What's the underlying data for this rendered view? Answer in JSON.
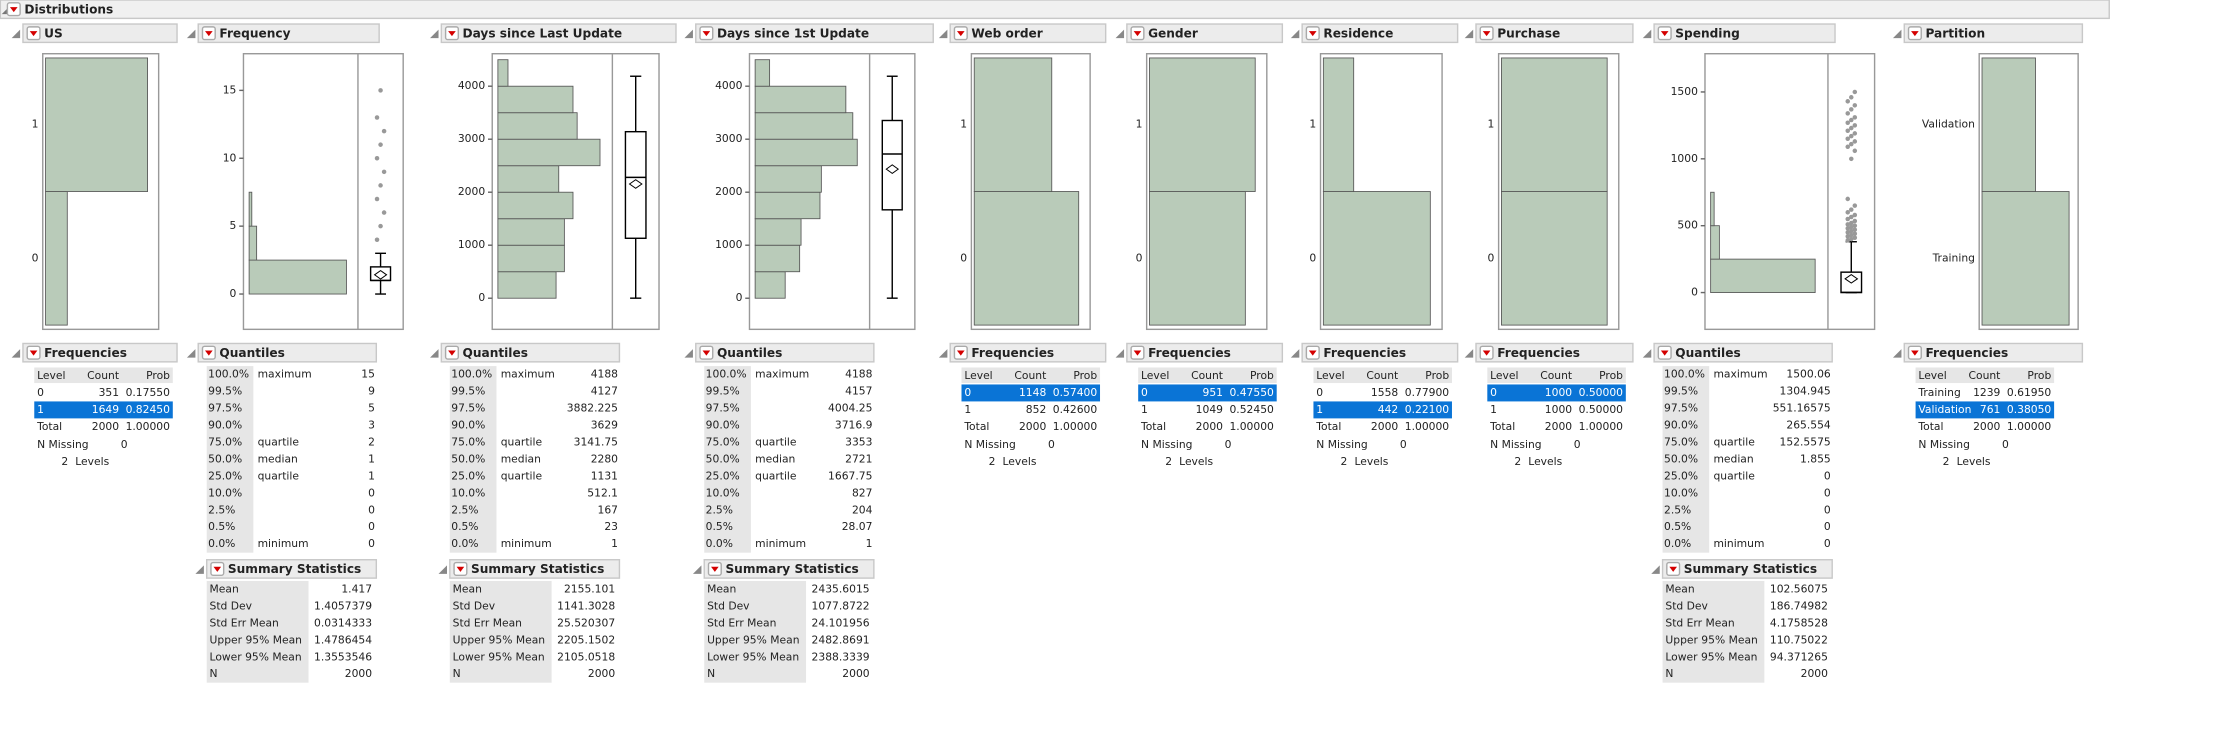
{
  "title": "Distributions",
  "panels": [
    {
      "name": "US",
      "type": "categorical",
      "frequencies": {
        "title": "Frequencies",
        "columns": [
          "Level",
          "Count",
          "Prob"
        ],
        "rows": [
          [
            "0",
            351,
            "0.17550"
          ],
          [
            "1",
            1649,
            "0.82450"
          ]
        ],
        "total": [
          "Total",
          2000,
          "1.00000"
        ],
        "selected": 1,
        "missing_label": "N Missing",
        "missing": 0,
        "levels": 2,
        "levels_label": "Levels"
      }
    },
    {
      "name": "Frequency",
      "type": "numeric",
      "ylim": [
        -2.6,
        17.7
      ],
      "yticks": [
        0,
        5,
        10,
        15
      ],
      "bins": [
        0,
        2.5,
        5,
        7.5
      ],
      "counts": [
        1810,
        140,
        50
      ],
      "whiskers": [
        0,
        3
      ],
      "outliers": [
        4,
        5,
        6,
        7,
        8,
        9,
        10,
        11,
        12,
        13,
        15
      ],
      "quantiles": {
        "title": "Quantiles",
        "rows": [
          {
            "pct": "100.0%",
            "label": "maximum",
            "value": 15
          },
          {
            "pct": "99.5%",
            "value": 9
          },
          {
            "pct": "97.5%",
            "value": 5
          },
          {
            "pct": "90.0%",
            "value": 3
          },
          {
            "pct": "75.0%",
            "label": "quartile",
            "value": 2
          },
          {
            "pct": "50.0%",
            "label": "median",
            "value": 1
          },
          {
            "pct": "25.0%",
            "label": "quartile",
            "value": 1
          },
          {
            "pct": "10.0%",
            "value": 0
          },
          {
            "pct": "2.5%",
            "value": 0
          },
          {
            "pct": "0.5%",
            "value": 0
          },
          {
            "pct": "0.0%",
            "label": "minimum",
            "value": 0
          }
        ]
      },
      "summary": {
        "title": "Summary Statistics",
        "rows": [
          [
            "Mean",
            1.417
          ],
          [
            "Std Dev",
            1.4057379
          ],
          [
            "Std Err Mean",
            0.0314333
          ],
          [
            "Upper 95% Mean",
            1.4786454
          ],
          [
            "Lower 95% Mean",
            1.3553546
          ],
          [
            "N",
            2000
          ]
        ]
      }
    },
    {
      "name": "Days since Last Update",
      "type": "numeric",
      "ylim": [
        -587,
        4613
      ],
      "yticks": [
        0,
        1000,
        2000,
        3000,
        4000
      ],
      "bins": [
        0,
        500,
        1000,
        1500,
        2000,
        2500,
        3000,
        3500,
        4000,
        4500
      ],
      "counts": [
        196,
        224,
        224,
        253,
        205,
        344,
        267,
        253,
        34
      ],
      "whiskers": [
        1,
        4188
      ],
      "outliers": [],
      "quantiles": {
        "title": "Quantiles",
        "rows": [
          {
            "pct": "100.0%",
            "label": "maximum",
            "value": 4188
          },
          {
            "pct": "99.5%",
            "value": 4127
          },
          {
            "pct": "97.5%",
            "value": 3882.225
          },
          {
            "pct": "90.0%",
            "value": 3629
          },
          {
            "pct": "75.0%",
            "label": "quartile",
            "value": 3141.75
          },
          {
            "pct": "50.0%",
            "label": "median",
            "value": 2280
          },
          {
            "pct": "25.0%",
            "label": "quartile",
            "value": 1131
          },
          {
            "pct": "10.0%",
            "value": 512.1
          },
          {
            "pct": "2.5%",
            "value": 167
          },
          {
            "pct": "0.5%",
            "value": 23
          },
          {
            "pct": "0.0%",
            "label": "minimum",
            "value": 1
          }
        ]
      },
      "summary": {
        "title": "Summary Statistics",
        "rows": [
          [
            "Mean",
            2155.101
          ],
          [
            "Std Dev",
            1141.3028
          ],
          [
            "Std Err Mean",
            25.520307
          ],
          [
            "Upper 95% Mean",
            2205.1502
          ],
          [
            "Lower 95% Mean",
            2105.0518
          ],
          [
            "N",
            2000
          ]
        ]
      }
    },
    {
      "name": "Days since 1st Update",
      "type": "numeric",
      "ylim": [
        -587,
        4613
      ],
      "yticks": [
        0,
        1000,
        2000,
        3000,
        4000
      ],
      "bins": [
        0,
        500,
        1000,
        1500,
        2000,
        2500,
        3000,
        3500,
        4000,
        4500
      ],
      "counts": [
        108,
        160,
        165,
        233,
        238,
        367,
        351,
        326,
        52
      ],
      "whiskers": [
        1,
        4188
      ],
      "outliers": [],
      "quantiles": {
        "title": "Quantiles",
        "rows": [
          {
            "pct": "100.0%",
            "label": "maximum",
            "value": 4188
          },
          {
            "pct": "99.5%",
            "value": 4157
          },
          {
            "pct": "97.5%",
            "value": 4004.25
          },
          {
            "pct": "90.0%",
            "value": 3716.9
          },
          {
            "pct": "75.0%",
            "label": "quartile",
            "value": 3353
          },
          {
            "pct": "50.0%",
            "label": "median",
            "value": 2721
          },
          {
            "pct": "25.0%",
            "label": "quartile",
            "value": 1667.75
          },
          {
            "pct": "10.0%",
            "value": 827
          },
          {
            "pct": "2.5%",
            "value": 204
          },
          {
            "pct": "0.5%",
            "value": 28.07
          },
          {
            "pct": "0.0%",
            "label": "minimum",
            "value": 1
          }
        ]
      },
      "summary": {
        "title": "Summary Statistics",
        "rows": [
          [
            "Mean",
            2435.6015
          ],
          [
            "Std Dev",
            1077.8722
          ],
          [
            "Std Err Mean",
            24.101956
          ],
          [
            "Upper 95% Mean",
            2482.8691
          ],
          [
            "Lower 95% Mean",
            2388.3339
          ],
          [
            "N",
            2000
          ]
        ]
      }
    },
    {
      "name": "Web order",
      "type": "categorical",
      "frequencies": {
        "title": "Frequencies",
        "columns": [
          "Level",
          "Count",
          "Prob"
        ],
        "rows": [
          [
            "0",
            1148,
            "0.57400"
          ],
          [
            "1",
            852,
            "0.42600"
          ]
        ],
        "total": [
          "Total",
          2000,
          "1.00000"
        ],
        "selected": 0,
        "missing_label": "N Missing",
        "missing": 0,
        "levels": 2,
        "levels_label": "Levels"
      }
    },
    {
      "name": "Gender",
      "type": "categorical",
      "frequencies": {
        "title": "Frequencies",
        "columns": [
          "Level",
          "Count",
          "Prob"
        ],
        "rows": [
          [
            "0",
            951,
            "0.47550"
          ],
          [
            "1",
            1049,
            "0.52450"
          ]
        ],
        "total": [
          "Total",
          2000,
          "1.00000"
        ],
        "selected": 0,
        "missing_label": "N Missing",
        "missing": 0,
        "levels": 2,
        "levels_label": "Levels"
      }
    },
    {
      "name": "Residence",
      "type": "categorical",
      "frequencies": {
        "title": "Frequencies",
        "columns": [
          "Level",
          "Count",
          "Prob"
        ],
        "rows": [
          [
            "0",
            1558,
            "0.77900"
          ],
          [
            "1",
            442,
            "0.22100"
          ]
        ],
        "total": [
          "Total",
          2000,
          "1.00000"
        ],
        "selected": 1,
        "missing_label": "N Missing",
        "missing": 0,
        "levels": 2,
        "levels_label": "Levels"
      }
    },
    {
      "name": "Purchase",
      "type": "categorical",
      "frequencies": {
        "title": "Frequencies",
        "columns": [
          "Level",
          "Count",
          "Prob"
        ],
        "rows": [
          [
            "0",
            1000,
            "0.50000"
          ],
          [
            "1",
            1000,
            "0.50000"
          ]
        ],
        "total": [
          "Total",
          2000,
          "1.00000"
        ],
        "selected": 0,
        "missing_label": "N Missing",
        "missing": 0,
        "levels": 2,
        "levels_label": "Levels"
      }
    },
    {
      "name": "Spending",
      "type": "numeric",
      "ylim": [
        -275,
        1786
      ],
      "yticks": [
        0,
        500,
        1000,
        1500
      ],
      "bins": [
        0,
        250,
        500,
        750
      ],
      "counts": [
        1790,
        150,
        60
      ],
      "whiskers": [
        0,
        380
      ],
      "outliers": [
        390,
        400,
        410,
        420,
        430,
        440,
        450,
        460,
        470,
        480,
        490,
        500,
        510,
        520,
        535,
        550,
        565,
        580,
        600,
        620,
        650,
        700,
        1000,
        1060,
        1090,
        1110,
        1130,
        1150,
        1170,
        1190,
        1210,
        1230,
        1250,
        1270,
        1290,
        1310,
        1340,
        1370,
        1400,
        1430,
        1460,
        1500
      ],
      "quantiles": {
        "title": "Quantiles",
        "rows": [
          {
            "pct": "100.0%",
            "label": "maximum",
            "value": 1500.06
          },
          {
            "pct": "99.5%",
            "value": 1304.945
          },
          {
            "pct": "97.5%",
            "value": 551.16575
          },
          {
            "pct": "90.0%",
            "value": 265.554
          },
          {
            "pct": "75.0%",
            "label": "quartile",
            "value": 152.5575
          },
          {
            "pct": "50.0%",
            "label": "median",
            "value": 1.855
          },
          {
            "pct": "25.0%",
            "label": "quartile",
            "value": 0
          },
          {
            "pct": "10.0%",
            "value": 0
          },
          {
            "pct": "2.5%",
            "value": 0
          },
          {
            "pct": "0.5%",
            "value": 0
          },
          {
            "pct": "0.0%",
            "label": "minimum",
            "value": 0
          }
        ]
      },
      "summary": {
        "title": "Summary Statistics",
        "rows": [
          [
            "Mean",
            102.56075
          ],
          [
            "Std Dev",
            186.74982
          ],
          [
            "Std Err Mean",
            4.1758528
          ],
          [
            "Upper 95% Mean",
            110.75022
          ],
          [
            "Lower 95% Mean",
            94.371265
          ],
          [
            "N",
            2000
          ]
        ]
      }
    },
    {
      "name": "Partition",
      "type": "categorical",
      "frequencies": {
        "title": "Frequencies",
        "columns": [
          "Level",
          "Count",
          "Prob"
        ],
        "rows": [
          [
            "Training",
            1239,
            "0.61950"
          ],
          [
            "Validation",
            761,
            "0.38050"
          ]
        ],
        "total": [
          "Total",
          2000,
          "1.00000"
        ],
        "selected": 1,
        "missing_label": "N Missing",
        "missing": 0,
        "levels": 2,
        "levels_label": "Levels"
      }
    }
  ]
}
